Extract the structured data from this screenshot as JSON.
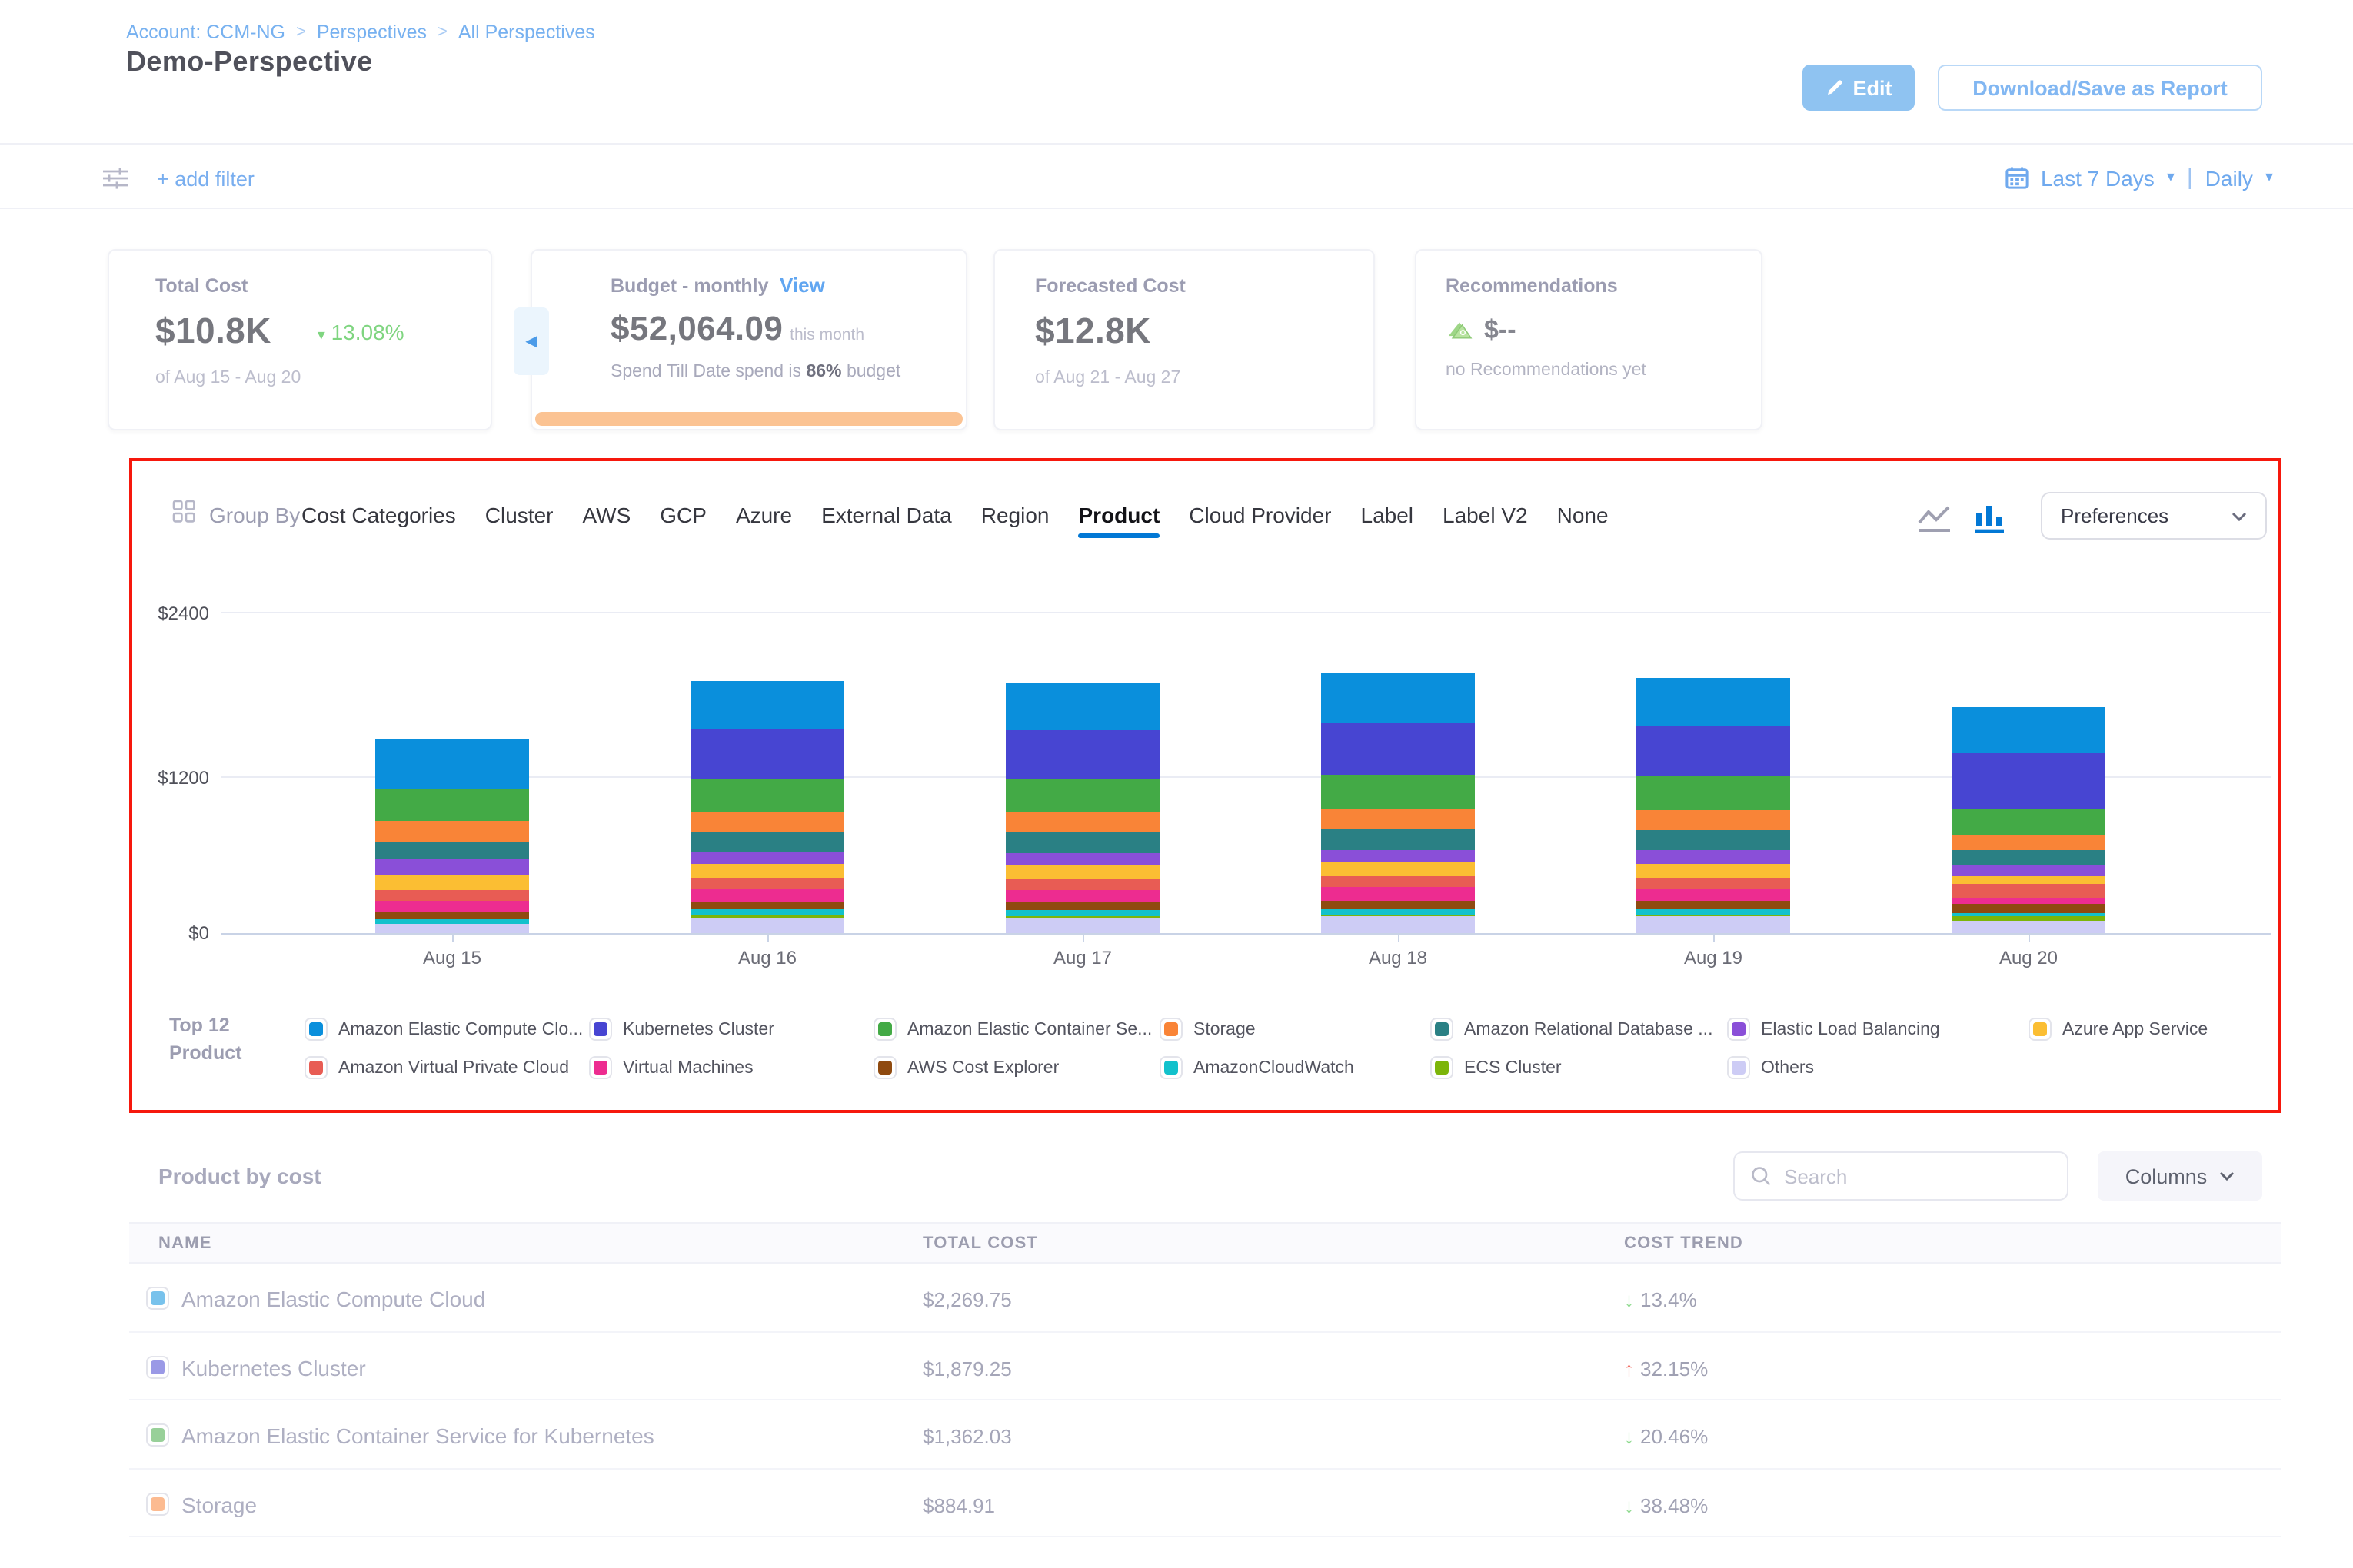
{
  "glyphs": {
    "breadcrumb_separator": ">",
    "chevron_down": "▾",
    "caret_left": "◀",
    "trend_up": "↑",
    "trend_down": "↓"
  },
  "header": {
    "breadcrumb": [
      "Account: CCM-NG",
      "Perspectives",
      "All Perspectives"
    ],
    "title": "Demo-Perspective",
    "edit_label": "Edit",
    "download_label": "Download/Save as Report"
  },
  "filter_bar": {
    "add_filter_label": "+ add filter",
    "date_range_label": "Last 7 Days",
    "granularity_label": "Daily"
  },
  "summary_cards": {
    "total_cost": {
      "label": "Total Cost",
      "value": "$10.8K",
      "trend": "13.08%",
      "trend_direction": "down",
      "period": "of Aug 15 - Aug 20"
    },
    "budget": {
      "label": "Budget - monthly",
      "view_label": "View",
      "value": "$52,064.09",
      "value_suffix": "this month",
      "note_prefix": "Spend Till Date spend is",
      "note_percent": "86%",
      "note_suffix": "budget"
    },
    "forecasted": {
      "label": "Forecasted Cost",
      "value": "$12.8K",
      "period": "of Aug 21 - Aug 27"
    },
    "recommendations": {
      "label": "Recommendations",
      "value": "$--",
      "note": "no Recommendations yet"
    }
  },
  "group_by": {
    "label": "Group By",
    "tabs": [
      "Cost Categories",
      "Cluster",
      "AWS",
      "GCP",
      "Azure",
      "External Data",
      "Region",
      "Product",
      "Cloud Provider",
      "Label",
      "Label V2",
      "None"
    ],
    "active_tab": "Product"
  },
  "preferences_label": "Preferences",
  "legend": {
    "title_line1": "Top 12",
    "title_line2": "Product"
  },
  "chart_data": {
    "type": "bar",
    "stacked": true,
    "title": "Daily cost grouped by Product",
    "xlabel": "",
    "ylabel": "",
    "ylim": [
      0,
      2400
    ],
    "y_ticks": [
      "$0",
      "$1200",
      "$2400"
    ],
    "grid": true,
    "legend_position": "bottom",
    "categories": [
      "Aug 15",
      "Aug 16",
      "Aug 17",
      "Aug 18",
      "Aug 19",
      "Aug 20"
    ],
    "series": [
      {
        "name": "Amazon Elastic Compute Clo...",
        "color": "#0a8fdc",
        "values": [
          369,
          357,
          355,
          368,
          362,
          352
        ]
      },
      {
        "name": "Kubernetes Cluster",
        "color": "#4745d2",
        "values": [
          0,
          372,
          367,
          383,
          377,
          409
        ]
      },
      {
        "name": "Amazon Elastic Container Se...",
        "color": "#43aa46",
        "values": [
          244,
          244,
          242,
          251,
          247,
          196
        ]
      },
      {
        "name": "Storage",
        "color": "#f98437",
        "values": [
          156,
          150,
          152,
          155,
          152,
          114
        ]
      },
      {
        "name": "Amazon Relational Database ...",
        "color": "#2a8084",
        "values": [
          135,
          150,
          157,
          155,
          152,
          118
        ]
      },
      {
        "name": "Elastic Load Balancing",
        "color": "#8a4fd8",
        "values": [
          107,
          94,
          89,
          97,
          95,
          82
        ]
      },
      {
        "name": "Azure App Service",
        "color": "#fbbe33",
        "values": [
          118,
          103,
          104,
          106,
          105,
          57
        ]
      },
      {
        "name": "Amazon Virtual Private Cloud",
        "color": "#e85c54",
        "values": [
          79,
          79,
          85,
          82,
          80,
          95
        ]
      },
      {
        "name": "Virtual Machines",
        "color": "#ed2c90",
        "values": [
          86,
          100,
          91,
          103,
          101,
          48
        ]
      },
      {
        "name": "AWS Cost Explorer",
        "color": "#8f4a10",
        "values": [
          60,
          51,
          57,
          53,
          52,
          76
        ]
      },
      {
        "name": "AmazonCloudWatch",
        "color": "#12c1cc",
        "values": [
          28,
          47,
          42,
          48,
          47,
          23
        ]
      },
      {
        "name": "ECS Cluster",
        "color": "#7cb50a",
        "values": [
          0,
          15,
          12,
          15,
          15,
          29
        ]
      },
      {
        "name": "Others",
        "color": "#cdccf5",
        "values": [
          69,
          117,
          117,
          120,
          122,
          91
        ]
      }
    ]
  },
  "table": {
    "title": "Product by cost",
    "search_placeholder": "Search",
    "columns_label": "Columns",
    "headers": [
      "NAME",
      "TOTAL COST",
      "COST TREND"
    ],
    "rows": [
      {
        "name": "Amazon Elastic Compute Cloud",
        "color": "#0a8fdc",
        "total_cost": "$2,269.75",
        "trend": "13.4%",
        "trend_direction": "down"
      },
      {
        "name": "Kubernetes Cluster",
        "color": "#4745d2",
        "total_cost": "$1,879.25",
        "trend": "32.15%",
        "trend_direction": "up"
      },
      {
        "name": "Amazon Elastic Container Service for Kubernetes",
        "color": "#43aa46",
        "total_cost": "$1,362.03",
        "trend": "20.46%",
        "trend_direction": "down"
      },
      {
        "name": "Storage",
        "color": "#f98437",
        "total_cost": "$884.91",
        "trend": "38.48%",
        "trend_direction": "down"
      }
    ]
  }
}
